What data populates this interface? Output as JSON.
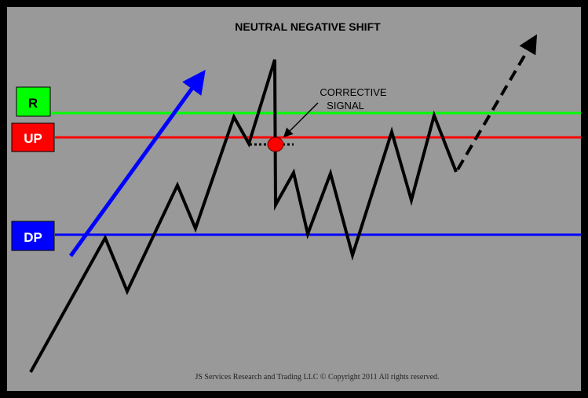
{
  "title": "NEUTRAL NEGATIVE SHIFT",
  "annotation": {
    "line1": "CORRECTIVE",
    "line2": "SIGNAL"
  },
  "credit": "JS Services Research and Trading LLC © Copyright 2011 All rights reserved.",
  "levels": [
    {
      "id": "r",
      "label": "R",
      "color": "#00ff00",
      "text_color": "#000000"
    },
    {
      "id": "up",
      "label": "UP",
      "color": "#ff0000",
      "text_color": "#ffffff"
    },
    {
      "id": "dp",
      "label": "DP",
      "color": "#0000ff",
      "text_color": "#ffffff"
    }
  ],
  "colors": {
    "background": "#999999",
    "border": "#000000",
    "price_line": "#000000",
    "trend_arrow": "#0000ff",
    "signal_dot": "#ff0000"
  }
}
